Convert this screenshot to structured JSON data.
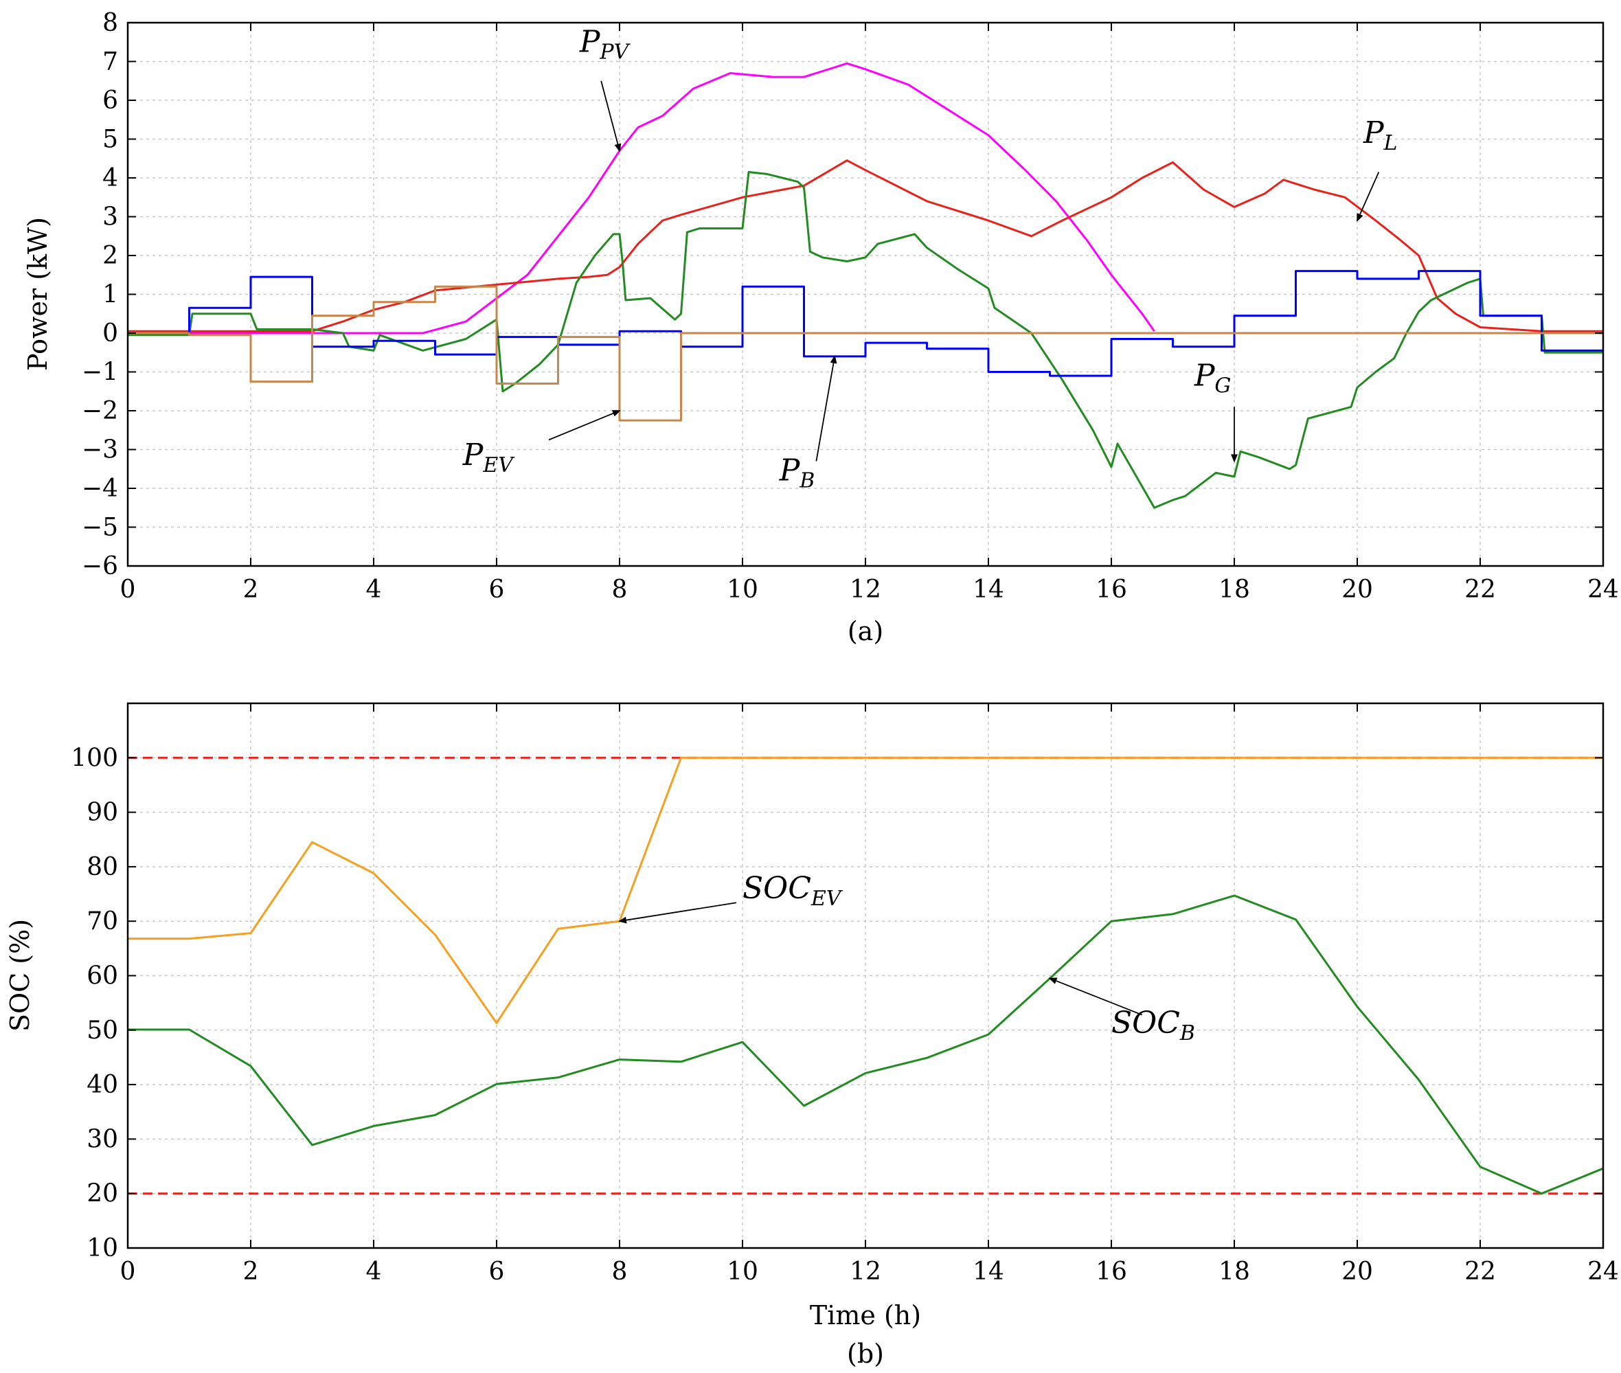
{
  "chart_data": [
    {
      "type": "line",
      "panel_label": "(a)",
      "title": "",
      "xlabel": "",
      "ylabel": "Power (kW)",
      "xlim": [
        0,
        24
      ],
      "ylim": [
        -6,
        8
      ],
      "xticks": [
        0,
        2,
        4,
        6,
        8,
        10,
        12,
        14,
        16,
        18,
        20,
        22,
        24
      ],
      "yticks": [
        -6,
        -5,
        -4,
        -3,
        -2,
        -1,
        0,
        1,
        2,
        3,
        4,
        5,
        6,
        7,
        8
      ],
      "grid": true,
      "legend": "none",
      "series": [
        {
          "key": "ppv",
          "color": "#ff00ff",
          "step": false,
          "x": [
            0,
            4.8,
            5.5,
            6.5,
            7.5,
            8.0,
            8.3,
            8.7,
            9.2,
            9.8,
            10.5,
            11.0,
            11.5,
            11.7,
            12.0,
            12.7,
            13.3,
            14.0,
            14.6,
            15.1,
            15.6,
            16.0,
            16.5,
            16.7
          ],
          "y": [
            0,
            0,
            0.3,
            1.5,
            3.5,
            4.7,
            5.3,
            5.6,
            6.3,
            6.7,
            6.6,
            6.6,
            6.85,
            6.95,
            6.8,
            6.4,
            5.8,
            5.1,
            4.2,
            3.4,
            2.4,
            1.5,
            0.5,
            0.05
          ]
        },
        {
          "key": "pl",
          "color": "#e8221b",
          "step": false,
          "x": [
            0,
            3.0,
            3.5,
            4.0,
            4.5,
            5.0,
            6.0,
            7.0,
            7.5,
            7.8,
            8.0,
            8.3,
            8.7,
            9.0,
            10.0,
            11.0,
            11.7,
            12.0,
            13.0,
            14.0,
            14.7,
            15.2,
            16.0,
            16.5,
            17.0,
            17.5,
            18.0,
            18.5,
            18.8,
            19.3,
            19.8,
            20.3,
            20.7,
            21.0,
            21.3,
            21.6,
            22.0,
            23.0,
            24.0
          ],
          "y": [
            0.05,
            0.05,
            0.3,
            0.6,
            0.8,
            1.1,
            1.25,
            1.4,
            1.45,
            1.5,
            1.7,
            2.3,
            2.9,
            3.05,
            3.5,
            3.8,
            4.45,
            4.2,
            3.4,
            2.9,
            2.5,
            2.9,
            3.5,
            4.0,
            4.4,
            3.7,
            3.25,
            3.6,
            3.95,
            3.7,
            3.5,
            2.9,
            2.4,
            2.0,
            0.9,
            0.5,
            0.15,
            0.05,
            0.05
          ]
        },
        {
          "key": "pg",
          "color": "#228b22",
          "step": false,
          "x": [
            0,
            1.0,
            1.05,
            2.0,
            2.1,
            3.0,
            3.5,
            3.6,
            4.0,
            4.1,
            4.8,
            5.5,
            6.0,
            6.1,
            6.3,
            6.7,
            7.0,
            7.3,
            7.6,
            7.9,
            8.0,
            8.05,
            8.1,
            8.5,
            8.9,
            9.0,
            9.1,
            9.3,
            9.7,
            10.0,
            10.1,
            10.4,
            10.9,
            11.0,
            11.1,
            11.3,
            11.7,
            12.0,
            12.2,
            12.8,
            13.0,
            13.5,
            14.0,
            14.1,
            14.7,
            15.2,
            15.7,
            16.0,
            16.1,
            16.3,
            16.7,
            17.0,
            17.2,
            17.7,
            18.0,
            18.1,
            18.4,
            18.9,
            19.0,
            19.2,
            19.9,
            20.0,
            20.3,
            20.6,
            20.8,
            21.0,
            21.2,
            21.4,
            21.8,
            22.0,
            22.05,
            23.0,
            23.05,
            24.0
          ],
          "y": [
            -0.05,
            -0.05,
            0.5,
            0.5,
            0.1,
            0.1,
            0.0,
            -0.35,
            -0.45,
            -0.05,
            -0.45,
            -0.15,
            0.35,
            -1.5,
            -1.3,
            -0.8,
            -0.3,
            1.3,
            2.0,
            2.55,
            2.55,
            1.8,
            0.85,
            0.9,
            0.35,
            0.5,
            2.6,
            2.7,
            2.7,
            2.7,
            4.15,
            4.1,
            3.9,
            3.75,
            2.1,
            1.95,
            1.85,
            1.95,
            2.3,
            2.55,
            2.2,
            1.65,
            1.15,
            0.65,
            0.0,
            -1.2,
            -2.5,
            -3.45,
            -2.85,
            -3.4,
            -4.5,
            -4.3,
            -4.2,
            -3.6,
            -3.7,
            -3.05,
            -3.2,
            -3.5,
            -3.4,
            -2.2,
            -1.9,
            -1.4,
            -1.0,
            -0.65,
            0.0,
            0.55,
            0.85,
            1.0,
            1.3,
            1.4,
            0.45,
            0.45,
            -0.5,
            -0.5
          ]
        },
        {
          "key": "pb",
          "color": "#0000ff",
          "step": true,
          "x": [
            0,
            1,
            2,
            3,
            4,
            5,
            6,
            7,
            8,
            9,
            10,
            11,
            12,
            13,
            14,
            15,
            16,
            17,
            18,
            19,
            20,
            21,
            22,
            23,
            24
          ],
          "y": [
            0.0,
            0.65,
            1.45,
            -0.35,
            -0.2,
            -0.55,
            -0.1,
            -0.3,
            0.05,
            -0.35,
            1.2,
            -0.6,
            -0.25,
            -0.4,
            -1.0,
            -1.1,
            -0.15,
            -0.35,
            0.45,
            1.6,
            1.4,
            1.6,
            0.45,
            -0.45,
            -0.45
          ]
        },
        {
          "key": "pev",
          "color": "#c8864a",
          "step": true,
          "x": [
            0,
            1,
            2,
            3,
            4,
            5,
            6,
            7,
            8,
            9,
            10,
            11,
            12,
            13,
            14,
            15,
            16,
            17,
            18,
            19,
            20,
            21,
            22,
            23,
            24
          ],
          "y": [
            0.0,
            -0.05,
            -1.25,
            0.45,
            0.8,
            1.2,
            -1.3,
            -0.1,
            -2.25,
            0,
            0,
            0,
            0,
            0,
            0,
            0,
            0,
            0,
            0,
            0,
            0,
            0,
            0,
            0,
            0
          ]
        }
      ],
      "annotations": [
        {
          "main": "P",
          "sub": "PV",
          "tx": 7.35,
          "ty": 7.25,
          "ax": 8.0,
          "ay": 4.7,
          "sx": 7.7,
          "sy": 6.5
        },
        {
          "main": "P",
          "sub": "L",
          "tx": 20.1,
          "ty": 4.9,
          "ax": 20.0,
          "ay": 2.9,
          "sx": 20.35,
          "sy": 4.15
        },
        {
          "main": "P",
          "sub": "G",
          "tx": 17.35,
          "ty": -1.35,
          "ax": 18.0,
          "ay": -3.3,
          "sx": 18.0,
          "sy": -1.9
        },
        {
          "main": "P",
          "sub": "EV",
          "tx": 5.45,
          "ty": -3.4,
          "ax": 8.0,
          "ay": -2.0,
          "sx": 6.85,
          "sy": -2.75
        },
        {
          "main": "P",
          "sub": "B",
          "tx": 10.6,
          "ty": -3.8,
          "ax": 11.5,
          "ay": -0.6,
          "sx": 11.2,
          "sy": -3.3
        }
      ]
    },
    {
      "type": "line",
      "panel_label": "(b)",
      "title": "",
      "xlabel": "Time (h)",
      "ylabel": "SOC (%)",
      "xlim": [
        0,
        24
      ],
      "ylim": [
        10,
        110
      ],
      "xticks": [
        0,
        2,
        4,
        6,
        8,
        10,
        12,
        14,
        16,
        18,
        20,
        22,
        24
      ],
      "yticks": [
        10,
        20,
        30,
        40,
        50,
        60,
        70,
        80,
        90,
        100
      ],
      "grid": true,
      "legend": "none",
      "reference_lines": [
        {
          "y": 100,
          "color": "#e8221b",
          "dash": true
        },
        {
          "y": 20,
          "color": "#e8221b",
          "dash": true
        }
      ],
      "series": [
        {
          "key": "soc_ev",
          "color": "#f5a020",
          "step": false,
          "x": [
            0,
            1,
            2,
            3,
            4,
            5,
            6,
            7,
            8,
            9,
            24
          ],
          "y": [
            66.8,
            66.8,
            67.8,
            84.5,
            78.8,
            67.5,
            51.3,
            68.6,
            70.0,
            100,
            100
          ]
        },
        {
          "key": "soc_b",
          "color": "#228b22",
          "step": false,
          "x": [
            0,
            1,
            2,
            3,
            4,
            5,
            6,
            7,
            8,
            9,
            10,
            11,
            12,
            13,
            14,
            15,
            16,
            17,
            18,
            19,
            20,
            21,
            22,
            23,
            24
          ],
          "y": [
            50.1,
            50.1,
            43.4,
            28.9,
            32.4,
            34.4,
            40.1,
            41.3,
            44.6,
            44.2,
            47.8,
            36.1,
            42.1,
            44.9,
            49.2,
            59.5,
            70.0,
            71.3,
            74.7,
            70.3,
            54.3,
            40.9,
            24.9,
            20.0,
            24.6
          ]
        }
      ],
      "annotations": [
        {
          "main": "SOC",
          "sub": "EV",
          "tx": 10.0,
          "ty": 74.2,
          "ax": 8.0,
          "ay": 70.0,
          "sx": 9.9,
          "sy": 73.4
        },
        {
          "main": "SOC",
          "sub": "B",
          "tx": 16.0,
          "ty": 49.5,
          "ax": 15.0,
          "ay": 59.5,
          "sx": 16.5,
          "sy": 52.8
        }
      ]
    }
  ]
}
